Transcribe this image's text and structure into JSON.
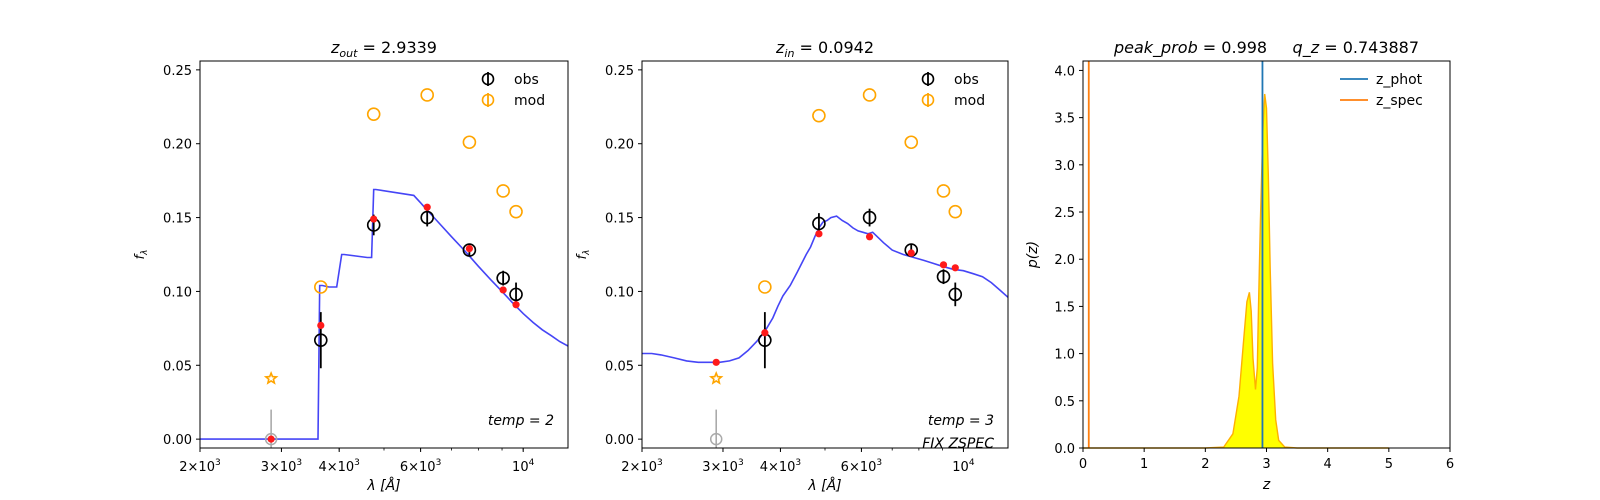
{
  "colors": {
    "model": "#3b3bf5",
    "model_phot": "#ff1a1a",
    "obs": "#000000",
    "mod": "#ffa500",
    "upper_limit": "#aaaaaa",
    "z_phot": "#1f77b4",
    "z_spec": "#ff7f0e",
    "pdf_fill": "#ffff00"
  },
  "chart_data": [
    {
      "type": "scatter",
      "title": "z_out = 2.9339",
      "title_parts": {
        "var": "z",
        "sub": "out",
        "rest": " = 2.9339"
      },
      "xlabel": "λ [Å]",
      "ylabel": "f_λ",
      "xscale": "log",
      "xlim": [
        2000,
        12500
      ],
      "ylim": [
        -0.006,
        0.256
      ],
      "yticks": [
        "0.00",
        "0.05",
        "0.10",
        "0.15",
        "0.20",
        "0.25"
      ],
      "xticks": [
        {
          "value": 2000,
          "base": "2×10",
          "exp": "3"
        },
        {
          "value": 3000,
          "base": "3×10",
          "exp": "3"
        },
        {
          "value": 4000,
          "base": "4×10",
          "exp": "3"
        },
        {
          "value": 6000,
          "base": "6×10",
          "exp": "3"
        },
        {
          "value": 10000,
          "base": "10",
          "exp": "4"
        }
      ],
      "legend": {
        "position": "top-right",
        "entries": [
          "obs",
          "mod"
        ]
      },
      "annotations": [
        "temp = 2"
      ],
      "model_sed": {
        "x": [
          2000,
          3600,
          3630,
          3680,
          3800,
          3900,
          3950,
          4050,
          4100,
          4600,
          4700,
          4750,
          4800,
          5800,
          6000,
          6200,
          6500,
          7000,
          7500,
          8000,
          8500,
          9000,
          9500,
          10000,
          10500,
          11000,
          11500,
          12000,
          12500
        ],
        "y": [
          0.0,
          0.0,
          0.104,
          0.104,
          0.103,
          0.103,
          0.103,
          0.125,
          0.125,
          0.123,
          0.123,
          0.169,
          0.169,
          0.165,
          0.16,
          0.155,
          0.148,
          0.137,
          0.127,
          0.117,
          0.108,
          0.1,
          0.092,
          0.085,
          0.079,
          0.074,
          0.07,
          0.066,
          0.063
        ]
      },
      "model_phot": {
        "x": [
          2850,
          3650,
          4750,
          6200,
          7650,
          9050,
          9650
        ],
        "y": [
          0.0,
          0.077,
          0.149,
          0.157,
          0.129,
          0.101,
          0.091
        ]
      },
      "obs": {
        "x": [
          3650,
          4750,
          6200,
          7650,
          9050,
          9650
        ],
        "y": [
          0.067,
          0.145,
          0.15,
          0.128,
          0.109,
          0.098
        ],
        "err": [
          0.019,
          0.007,
          0.006,
          0.004,
          0.005,
          0.008
        ]
      },
      "mod": {
        "x": [
          3650,
          4750,
          6200,
          7650,
          9050,
          9650
        ],
        "y": [
          0.103,
          0.22,
          0.233,
          0.201,
          0.168,
          0.154
        ]
      },
      "upper_limit": {
        "x": 2850,
        "y": 0.0,
        "err": 0.02
      },
      "upper_limit_mod": {
        "x": 2850,
        "y": 0.041
      }
    },
    {
      "type": "scatter",
      "title": "z_in = 0.0942",
      "title_parts": {
        "var": "z",
        "sub": "in",
        "rest": " = 0.0942"
      },
      "xlabel": "λ [Å]",
      "ylabel": "f_λ",
      "xscale": "log",
      "xlim": [
        2000,
        12500
      ],
      "ylim": [
        -0.006,
        0.256
      ],
      "yticks": [
        "0.00",
        "0.05",
        "0.10",
        "0.15",
        "0.20",
        "0.25"
      ],
      "xticks": [
        {
          "value": 2000,
          "base": "2×10",
          "exp": "3"
        },
        {
          "value": 3000,
          "base": "3×10",
          "exp": "3"
        },
        {
          "value": 4000,
          "base": "4×10",
          "exp": "3"
        },
        {
          "value": 6000,
          "base": "6×10",
          "exp": "3"
        },
        {
          "value": 10000,
          "base": "10",
          "exp": "4"
        }
      ],
      "legend": {
        "position": "top-right",
        "entries": [
          "obs",
          "mod"
        ]
      },
      "annotations": [
        "temp = 3",
        "FIX ZSPEC"
      ],
      "model_sed": {
        "x": [
          2000,
          2100,
          2200,
          2350,
          2500,
          2650,
          2800,
          2950,
          3100,
          3250,
          3400,
          3550,
          3700,
          3850,
          3950,
          4050,
          4200,
          4350,
          4450,
          4550,
          4650,
          4750,
          4850,
          4950,
          5050,
          5150,
          5300,
          5450,
          5600,
          5750,
          5900,
          6050,
          6200,
          6350,
          6500,
          6700,
          7000,
          7400,
          7800,
          8200,
          8600,
          9000,
          9500,
          10000,
          10500,
          11000,
          11500,
          12000,
          12500
        ],
        "y": [
          0.058,
          0.058,
          0.057,
          0.055,
          0.053,
          0.052,
          0.052,
          0.052,
          0.053,
          0.055,
          0.06,
          0.066,
          0.073,
          0.082,
          0.09,
          0.097,
          0.104,
          0.113,
          0.119,
          0.125,
          0.13,
          0.137,
          0.143,
          0.147,
          0.148,
          0.15,
          0.151,
          0.148,
          0.146,
          0.143,
          0.141,
          0.14,
          0.139,
          0.14,
          0.137,
          0.133,
          0.128,
          0.125,
          0.123,
          0.121,
          0.119,
          0.117,
          0.115,
          0.114,
          0.112,
          0.11,
          0.106,
          0.101,
          0.096
        ]
      },
      "model_phot": {
        "x": [
          2900,
          3700,
          4850,
          6250,
          7700,
          9050,
          9600
        ],
        "y": [
          0.052,
          0.072,
          0.139,
          0.137,
          0.126,
          0.118,
          0.116
        ]
      },
      "obs": {
        "x": [
          3700,
          4850,
          6250,
          7700,
          9050,
          9600
        ],
        "y": [
          0.067,
          0.146,
          0.15,
          0.128,
          0.11,
          0.098
        ],
        "err": [
          0.019,
          0.007,
          0.006,
          0.004,
          0.005,
          0.008
        ]
      },
      "mod": {
        "x": [
          3700,
          4850,
          6250,
          7700,
          9050,
          9600
        ],
        "y": [
          0.103,
          0.219,
          0.233,
          0.201,
          0.168,
          0.154
        ]
      },
      "upper_limit": {
        "x": 2900,
        "y": 0.0,
        "err": 0.02
      },
      "upper_limit_mod": {
        "x": 2900,
        "y": 0.041
      }
    },
    {
      "type": "line",
      "title": "peak_prob = 0.998     q_z = 0.743887",
      "title_parts": {
        "a_var": "peak_prob",
        "a_val": " = 0.998",
        "b_var": "q_z",
        "b_val": " = 0.743887"
      },
      "xlabel": "z",
      "ylabel": "p(z)",
      "xlim": [
        0,
        6
      ],
      "ylim": [
        0,
        4.1
      ],
      "xticks": [
        "0",
        "1",
        "2",
        "3",
        "4",
        "5",
        "6"
      ],
      "yticks": [
        "0.0",
        "0.5",
        "1.0",
        "1.5",
        "2.0",
        "2.5",
        "3.0",
        "3.5",
        "4.0"
      ],
      "legend": {
        "position": "top-right",
        "entries": [
          "z_phot",
          "z_spec"
        ]
      },
      "z_phot": 2.9339,
      "z_spec": 0.0942,
      "pdf": {
        "x": [
          0.0,
          0.5,
          1.0,
          1.5,
          2.0,
          2.3,
          2.45,
          2.55,
          2.62,
          2.68,
          2.72,
          2.75,
          2.78,
          2.82,
          2.85,
          2.87,
          2.9,
          2.94,
          2.97,
          3.0,
          3.03,
          3.06,
          3.1,
          3.15,
          3.2,
          3.3,
          3.5,
          4.0,
          5.0
        ],
        "y": [
          0.0,
          0.0,
          0.0,
          0.0,
          0.0,
          0.01,
          0.15,
          0.55,
          1.1,
          1.55,
          1.65,
          1.45,
          0.95,
          0.62,
          0.85,
          1.5,
          2.4,
          3.35,
          3.75,
          3.6,
          2.9,
          1.9,
          0.9,
          0.3,
          0.08,
          0.01,
          0.0,
          0.0,
          0.0
        ]
      }
    }
  ]
}
